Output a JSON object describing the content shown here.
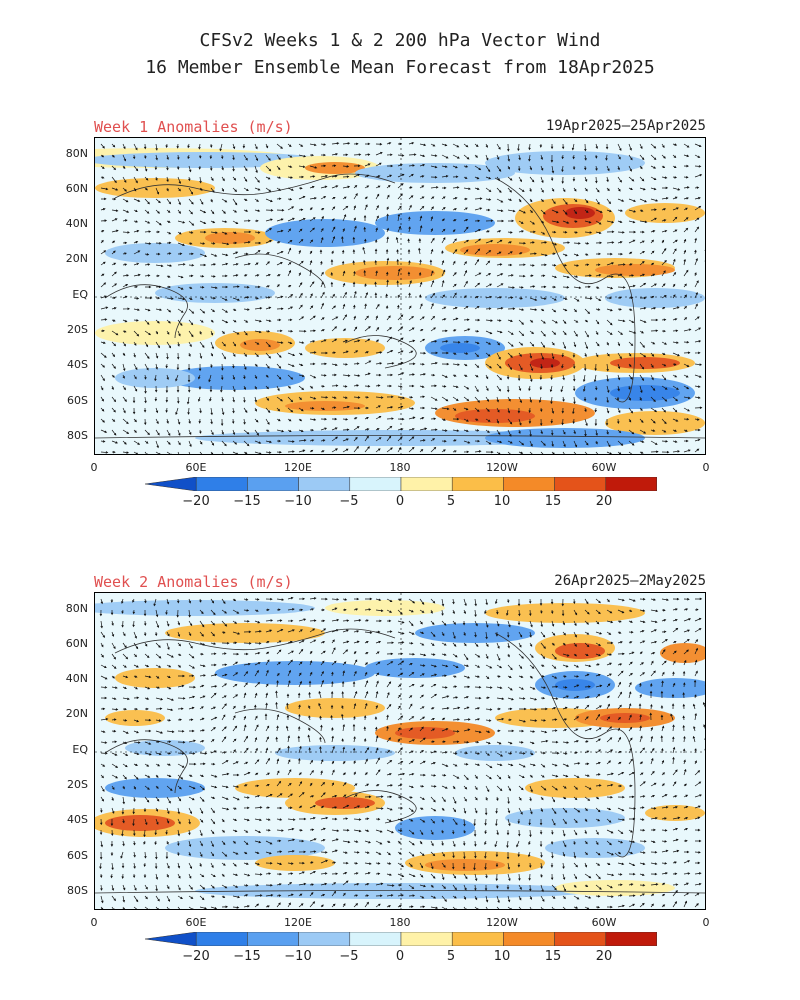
{
  "title_line1": "CFSv2 Weeks 1 & 2 200 hPa Vector Wind",
  "title_line2": "16 Member Ensemble Mean Forecast from 18Apr2025",
  "panels": [
    {
      "label": "Week 1 Anomalies (m/s)",
      "dates": "19Apr2025—25Apr2025"
    },
    {
      "label": "Week 2 Anomalies (m/s)",
      "dates": "26Apr2025—2May2025"
    }
  ],
  "lat_labels": [
    "80N",
    "60N",
    "40N",
    "20N",
    "EQ",
    "20S",
    "40S",
    "60S",
    "80S"
  ],
  "lon_labels": [
    "0",
    "60E",
    "120E",
    "180",
    "120W",
    "60W",
    "0"
  ],
  "colorbar": {
    "labels": [
      "−20",
      "−15",
      "−10",
      "−5",
      "0",
      "5",
      "10",
      "15",
      "20"
    ],
    "colors": [
      "#1050c8",
      "#2f7fe8",
      "#5aa0f0",
      "#9ccaf5",
      "#d8f4fc",
      "#fff2a8",
      "#fbbe48",
      "#f48a28",
      "#e4531a",
      "#c01a0a",
      "#8c0000"
    ]
  }
}
